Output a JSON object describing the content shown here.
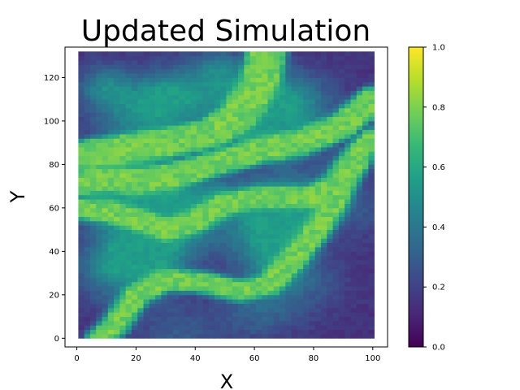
{
  "chart_data": {
    "type": "heatmap",
    "title": "Updated Simulation",
    "xlabel": "X",
    "ylabel": "Y",
    "xlim": [
      -4,
      105
    ],
    "ylim": [
      -4,
      134
    ],
    "data_extent": {
      "x": [
        0.5,
        100.5
      ],
      "y": [
        0,
        131
      ]
    },
    "xticks": [
      0,
      20,
      40,
      60,
      80,
      100
    ],
    "yticks": [
      0,
      20,
      40,
      60,
      80,
      100,
      120
    ],
    "colormap": "viridis",
    "colorbar": {
      "min": 0.0,
      "max": 1.0,
      "ticks": [
        "0.0",
        "0.2",
        "0.4",
        "0.6",
        "0.8",
        "1.0"
      ]
    },
    "value_range": [
      0.0,
      1.0
    ],
    "background_level": 0.15,
    "channel_level": 0.78,
    "channels": [
      {
        "points": [
          [
            0,
            84
          ],
          [
            15,
            87
          ],
          [
            30,
            90
          ],
          [
            45,
            94
          ],
          [
            55,
            103
          ],
          [
            62,
            118
          ],
          [
            64,
            131
          ]
        ],
        "width": 7
      },
      {
        "points": [
          [
            0,
            72
          ],
          [
            12,
            74
          ],
          [
            20,
            72
          ],
          [
            30,
            74
          ],
          [
            45,
            80
          ],
          [
            60,
            86
          ],
          [
            75,
            90
          ],
          [
            90,
            98
          ],
          [
            100,
            110
          ]
        ],
        "width": 6
      },
      {
        "points": [
          [
            0,
            60
          ],
          [
            12,
            58
          ],
          [
            22,
            54
          ],
          [
            30,
            50
          ],
          [
            40,
            54
          ],
          [
            50,
            62
          ],
          [
            60,
            65
          ],
          [
            70,
            65
          ],
          [
            80,
            65
          ],
          [
            88,
            72
          ],
          [
            95,
            85
          ],
          [
            100,
            92
          ]
        ],
        "width": 5
      },
      {
        "points": [
          [
            8,
            0
          ],
          [
            13,
            6
          ],
          [
            20,
            20
          ],
          [
            30,
            27
          ],
          [
            42,
            26
          ],
          [
            55,
            22
          ],
          [
            65,
            25
          ],
          [
            72,
            35
          ],
          [
            80,
            48
          ],
          [
            86,
            60
          ],
          [
            90,
            72
          ],
          [
            95,
            83
          ]
        ],
        "width": 5
      }
    ]
  }
}
